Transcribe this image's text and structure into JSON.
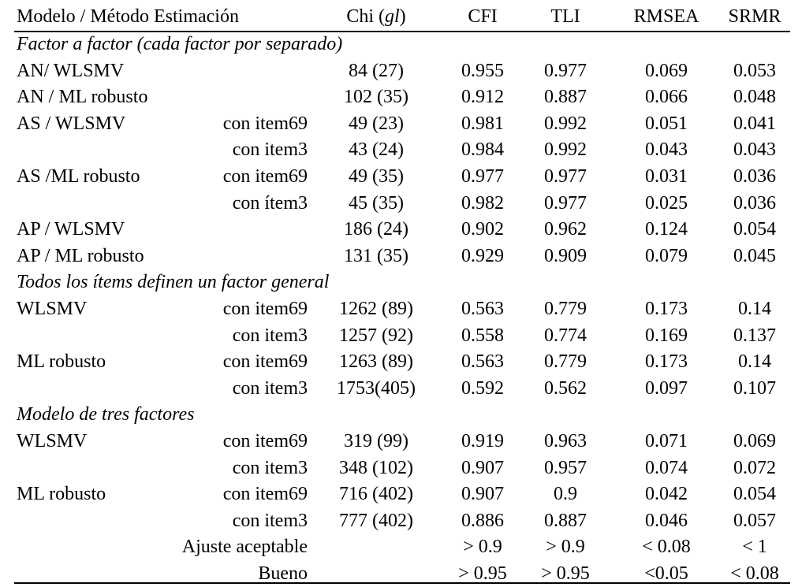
{
  "header": {
    "model": "Modelo / Método Estimación",
    "chi_prefix": "Chi (",
    "chi_gl": "gl",
    "chi_suffix": ")",
    "cfi": "CFI",
    "tli": "TLI",
    "rmsea": "RMSEA",
    "srmr": "SRMR"
  },
  "rows": [
    {
      "type": "section",
      "label": "Factor a factor (cada factor por separado)"
    },
    {
      "type": "data",
      "model": "AN/ WLSMV",
      "variant": "",
      "chi": "84 (27)",
      "cfi": "0.955",
      "tli": "0.977",
      "rmsea": "0.069",
      "srmr": "0.053"
    },
    {
      "type": "data",
      "model": "AN / ML robusto",
      "variant": "",
      "chi": "102 (35)",
      "cfi": "0.912",
      "tli": "0.887",
      "rmsea": "0.066",
      "srmr": "0.048"
    },
    {
      "type": "data",
      "model": "AS / WLSMV",
      "variant": "con item69",
      "chi": "49 (23)",
      "cfi": "0.981",
      "tli": "0.992",
      "rmsea": "0.051",
      "srmr": "0.041"
    },
    {
      "type": "data",
      "model": "",
      "variant": "con item3",
      "chi": "43 (24)",
      "cfi": "0.984",
      "tli": "0.992",
      "rmsea": "0.043",
      "srmr": "0.043"
    },
    {
      "type": "data",
      "model": "AS /ML robusto",
      "variant": "con item69",
      "chi": "49 (35)",
      "cfi": "0.977",
      "tli": "0.977",
      "rmsea": "0.031",
      "srmr": "0.036"
    },
    {
      "type": "data",
      "model": "",
      "variant": "con ítem3",
      "chi": "45 (35)",
      "cfi": "0.982",
      "tli": "0.977",
      "rmsea": "0.025",
      "srmr": "0.036"
    },
    {
      "type": "data",
      "model": "AP / WLSMV",
      "variant": "",
      "chi": "186 (24)",
      "cfi": "0.902",
      "tli": "0.962",
      "rmsea": "0.124",
      "srmr": "0.054"
    },
    {
      "type": "data",
      "model": "AP / ML robusto",
      "variant": "",
      "chi": "131 (35)",
      "cfi": "0.929",
      "tli": "0.909",
      "rmsea": "0.079",
      "srmr": "0.045"
    },
    {
      "type": "section",
      "label": "Todos los ítems definen un factor general"
    },
    {
      "type": "data",
      "model": "WLSMV",
      "variant": "con item69",
      "chi": "1262 (89)",
      "cfi": "0.563",
      "tli": "0.779",
      "rmsea": "0.173",
      "srmr": "0.14"
    },
    {
      "type": "data",
      "model": "",
      "variant": "con item3",
      "chi": "1257 (92)",
      "cfi": "0.558",
      "tli": "0.774",
      "rmsea": "0.169",
      "srmr": "0.137"
    },
    {
      "type": "data",
      "model": "ML robusto",
      "variant": "con item69",
      "chi": "1263 (89)",
      "cfi": "0.563",
      "tli": "0.779",
      "rmsea": "0.173",
      "srmr": "0.14"
    },
    {
      "type": "data",
      "model": "",
      "variant": "con item3",
      "chi": "1753(405)",
      "cfi": "0.592",
      "tli": "0.562",
      "rmsea": "0.097",
      "srmr": "0.107"
    },
    {
      "type": "section",
      "label": "Modelo de tres factores"
    },
    {
      "type": "data",
      "model": "WLSMV",
      "variant": "con item69",
      "chi": "319 (99)",
      "cfi": "0.919",
      "tli": "0.963",
      "rmsea": "0.071",
      "srmr": "0.069"
    },
    {
      "type": "data",
      "model": "",
      "variant": "con item3",
      "chi": "348 (102)",
      "cfi": "0.907",
      "tli": "0.957",
      "rmsea": "0.074",
      "srmr": "0.072"
    },
    {
      "type": "data",
      "model": "ML robusto",
      "variant": "con item69",
      "chi": "716 (402)",
      "cfi": "0.907",
      "tli": "0.9",
      "rmsea": "0.042",
      "srmr": "0.054"
    },
    {
      "type": "data",
      "model": "",
      "variant": "con item3",
      "chi": "777 (402)",
      "cfi": "0.886",
      "tli": "0.887",
      "rmsea": "0.046",
      "srmr": "0.057"
    },
    {
      "type": "data",
      "model": "",
      "variant": "Ajuste aceptable",
      "chi": "",
      "cfi": "> 0.9",
      "tli": "> 0.9",
      "rmsea": "< 0.08",
      "srmr": "< 1"
    },
    {
      "type": "data",
      "model": "",
      "variant": "Bueno",
      "chi": "",
      "cfi": "> 0.95",
      "tli": "> 0.95",
      "rmsea": "<0.05",
      "srmr": "< 0.08"
    }
  ]
}
